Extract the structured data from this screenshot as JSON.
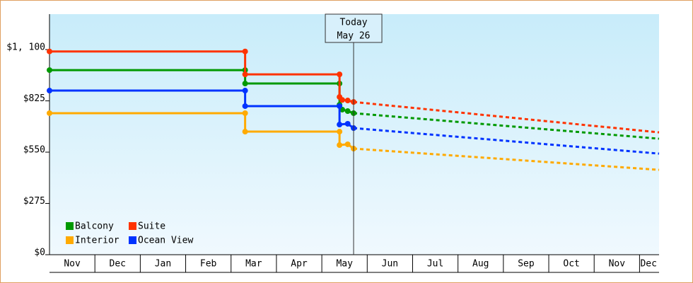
{
  "chart_data": {
    "type": "step-line",
    "ylim": [
      0,
      1290
    ],
    "yticks": [
      {
        "value": 0,
        "label": "$0"
      },
      {
        "value": 275,
        "label": "$275"
      },
      {
        "value": 550,
        "label": "$550"
      },
      {
        "value": 825,
        "label": "$825"
      },
      {
        "value": 1100,
        "label": "$1, 100"
      }
    ],
    "xlim": [
      0,
      13.43
    ],
    "xticks": [
      {
        "value": 0.5,
        "label": "Nov"
      },
      {
        "value": 1.5,
        "label": "Dec"
      },
      {
        "value": 2.5,
        "label": "Jan"
      },
      {
        "value": 3.5,
        "label": "Feb"
      },
      {
        "value": 4.5,
        "label": "Mar"
      },
      {
        "value": 5.5,
        "label": "Apr"
      },
      {
        "value": 6.5,
        "label": "May"
      },
      {
        "value": 7.5,
        "label": "Jun"
      },
      {
        "value": 8.5,
        "label": "Jul"
      },
      {
        "value": 9.5,
        "label": "Aug"
      },
      {
        "value": 10.5,
        "label": "Sep"
      },
      {
        "value": 11.5,
        "label": "Oct"
      },
      {
        "value": 12.5,
        "label": "Nov"
      },
      {
        "value": 13.2,
        "label": "Dec"
      }
    ],
    "annotation": {
      "x": 6.7,
      "lines": [
        "Today",
        "May 26"
      ]
    },
    "series": [
      {
        "name": "Balcony",
        "color": "#009900",
        "x": [
          0,
          4.31,
          4.31,
          6.39,
          6.39,
          6.45,
          6.57,
          6.7
        ],
        "values": [
          990,
          990,
          918,
          918,
          804,
          778,
          770,
          759
        ],
        "forecast": {
          "x": [
            6.7,
            13.43
          ],
          "values": [
            759,
            622
          ]
        }
      },
      {
        "name": "Suite",
        "color": "#ff3300",
        "x": [
          0,
          4.31,
          4.31,
          6.39,
          6.39,
          6.45,
          6.57,
          6.7
        ],
        "values": [
          1090,
          1090,
          967,
          967,
          846,
          830,
          827,
          819
        ],
        "forecast": {
          "x": [
            6.7,
            13.43
          ],
          "values": [
            819,
            656
          ]
        }
      },
      {
        "name": "Interior",
        "color": "#ffaa00",
        "x": [
          0,
          4.31,
          4.31,
          6.39,
          6.39,
          6.57,
          6.7
        ],
        "values": [
          759,
          759,
          660,
          660,
          588,
          592,
          569
        ],
        "forecast": {
          "x": [
            6.7,
            13.43
          ],
          "values": [
            569,
            455
          ]
        }
      },
      {
        "name": "Ocean View",
        "color": "#0033ff",
        "x": [
          0,
          4.31,
          4.31,
          6.39,
          6.39,
          6.57,
          6.7
        ],
        "values": [
          880,
          880,
          797,
          797,
          698,
          702,
          679
        ],
        "forecast": {
          "x": [
            6.7,
            13.43
          ],
          "values": [
            679,
            542
          ]
        }
      }
    ]
  }
}
